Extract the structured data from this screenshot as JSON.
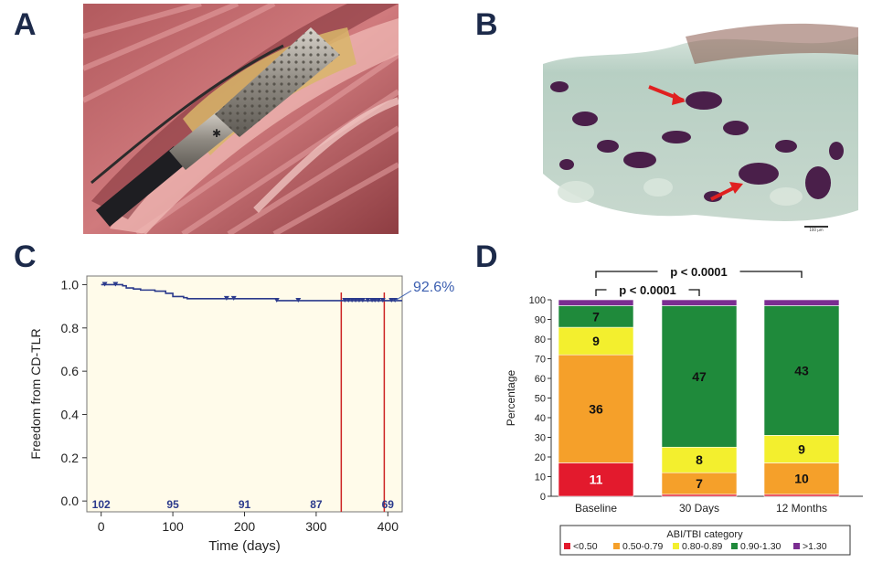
{
  "panel_labels": [
    "A",
    "B",
    "C",
    "D"
  ],
  "colors": {
    "km_line": "#2b3a8c",
    "km_label": "#3c5fb0",
    "km_bg": "#fffbea",
    "red_marker": "#cc2222",
    "cat_lt050": "#e31a2d",
    "cat_050_079": "#f5a02a",
    "cat_080_089": "#f3ef2e",
    "cat_090_130": "#1f8a3b",
    "cat_gt130": "#7b2d91"
  },
  "panel_a": {
    "image": "endovascular-lithotripsy-catheter-photo"
  },
  "panel_b": {
    "image": "histology-calcium-deposits",
    "scale_bar": "100 µm"
  },
  "chart_data": [
    {
      "type": "line",
      "subtype": "kaplan-meier",
      "xlabel": "Time (days)",
      "ylabel": "Freedom from CD-TLR",
      "xlim": [
        -20,
        420
      ],
      "ylim": [
        -0.05,
        1.04
      ],
      "xticks": [
        0,
        100,
        200,
        300,
        400
      ],
      "yticks": [
        0.0,
        0.2,
        0.4,
        0.6,
        0.8,
        1.0
      ],
      "ytick_labels": [
        "0.0",
        "0.2",
        "0.4",
        "0.6",
        "0.8",
        "1.0"
      ],
      "annotation": "92.6%",
      "annotation_value": 0.926,
      "steps": [
        {
          "x": 0,
          "y": 1.0
        },
        {
          "x": 30,
          "y": 0.995
        },
        {
          "x": 35,
          "y": 0.985
        },
        {
          "x": 45,
          "y": 0.98
        },
        {
          "x": 55,
          "y": 0.975
        },
        {
          "x": 75,
          "y": 0.97
        },
        {
          "x": 90,
          "y": 0.96
        },
        {
          "x": 100,
          "y": 0.945
        },
        {
          "x": 115,
          "y": 0.94
        },
        {
          "x": 120,
          "y": 0.935
        },
        {
          "x": 245,
          "y": 0.926
        },
        {
          "x": 420,
          "y": 0.926
        }
      ],
      "censor_marks": [
        5,
        20,
        175,
        185,
        245,
        275,
        340,
        345,
        350,
        355,
        360,
        365,
        372,
        378,
        382,
        387,
        393,
        405,
        410
      ],
      "vertical_markers": [
        335,
        395
      ],
      "at_risk": [
        {
          "x": 0,
          "n": "102"
        },
        {
          "x": 100,
          "n": "95"
        },
        {
          "x": 200,
          "n": "91"
        },
        {
          "x": 300,
          "n": "87"
        },
        {
          "x": 400,
          "n": "69"
        }
      ]
    },
    {
      "type": "bar",
      "stacked": true,
      "ylabel": "Percentage",
      "ylim": [
        0,
        100
      ],
      "yticks": [
        0,
        10,
        20,
        30,
        40,
        50,
        60,
        70,
        80,
        90,
        100
      ],
      "categories": [
        "Baseline",
        "30 Days",
        "12 Months"
      ],
      "legend_title": "ABI/TBI category",
      "legend_position": "bottom",
      "series": [
        {
          "name": "<0.50",
          "values": [
            17,
            1,
            1
          ],
          "labels": [
            "11",
            "",
            ""
          ]
        },
        {
          "name": "0.50-0.79",
          "values": [
            55,
            11,
            16
          ],
          "labels": [
            "36",
            "7",
            "10"
          ]
        },
        {
          "name": "0.80-0.89",
          "values": [
            14,
            13,
            14
          ],
          "labels": [
            "9",
            "8",
            "9"
          ]
        },
        {
          "name": "0.90-1.30",
          "values": [
            11,
            72,
            66
          ],
          "labels": [
            "7",
            "47",
            "43"
          ]
        },
        {
          "name": ">1.30",
          "values": [
            3,
            3,
            3
          ],
          "labels": [
            "",
            "",
            ""
          ]
        }
      ],
      "comparisons": [
        {
          "from": "Baseline",
          "to": "12 Months",
          "label": "p < 0.0001"
        },
        {
          "from": "Baseline",
          "to": "30 Days",
          "label": "p < 0.0001"
        }
      ]
    }
  ]
}
